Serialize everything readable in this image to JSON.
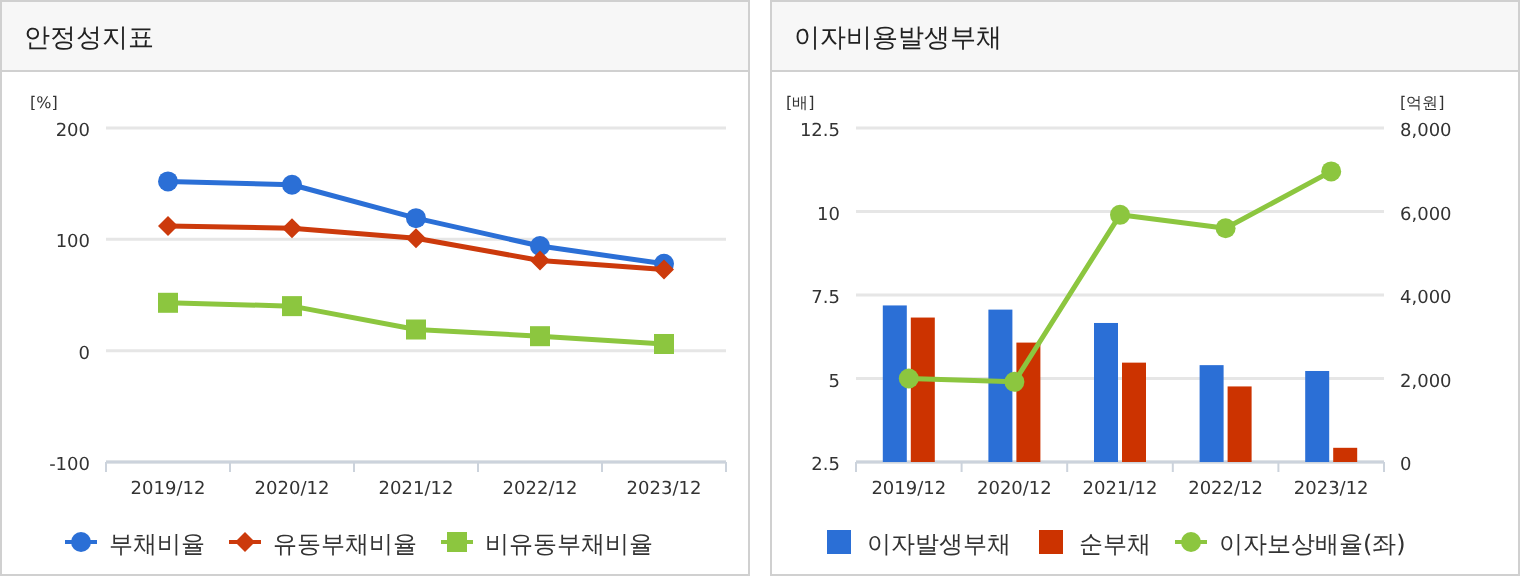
{
  "chart_data": [
    {
      "type": "line",
      "title": "안정성지표",
      "ylabel": "[%]",
      "categories": [
        "2019/12",
        "2020/12",
        "2021/12",
        "2022/12",
        "2023/12"
      ],
      "series": [
        {
          "name": "부채비율",
          "color": "#2b6fd6",
          "marker": "circle",
          "values": [
            152,
            149,
            119,
            94,
            78
          ]
        },
        {
          "name": "유동부채비율",
          "color": "#cc3a0c",
          "marker": "diamond",
          "values": [
            112,
            110,
            101,
            81,
            73
          ]
        },
        {
          "name": "비유동부채비율",
          "color": "#8cc63f",
          "marker": "square",
          "values": [
            43,
            40,
            19,
            13,
            6
          ]
        }
      ],
      "ylim": [
        -100,
        200
      ],
      "yticks": [
        -100,
        0,
        100,
        200
      ],
      "grid": "y",
      "legend": "bottom"
    },
    {
      "type": "bar",
      "title": "이자비용발생부채",
      "ylabel": "[배]",
      "y2label": "[억원]",
      "categories": [
        "2019/12",
        "2020/12",
        "2021/12",
        "2022/12",
        "2023/12"
      ],
      "series": [
        {
          "name": "이자발생부채",
          "color": "#2b6fd6",
          "axis": "y2",
          "values": [
            3750,
            3650,
            3330,
            2320,
            2180
          ]
        },
        {
          "name": "순부채",
          "color": "#cc3300",
          "axis": "y2",
          "values": [
            3460,
            2860,
            2380,
            1810,
            340
          ]
        },
        {
          "name": "이자보상배율(좌)",
          "type": "line",
          "marker": "circle",
          "color": "#8cc63f",
          "values": [
            5.0,
            4.9,
            9.9,
            9.5,
            11.2
          ]
        }
      ],
      "ylim": [
        2.5,
        12.5
      ],
      "yticks": [
        2.5,
        5,
        7.5,
        10,
        12.5
      ],
      "y2lim": [
        0,
        8000
      ],
      "y2ticks": [
        0,
        {
          "value": 2000,
          "label": "2,000"
        },
        {
          "value": 4000,
          "label": "4,000"
        },
        {
          "value": 6000,
          "label": "6,000"
        },
        {
          "value": 8000,
          "label": "8,000"
        }
      ],
      "grid": "y",
      "legend": "bottom"
    }
  ]
}
